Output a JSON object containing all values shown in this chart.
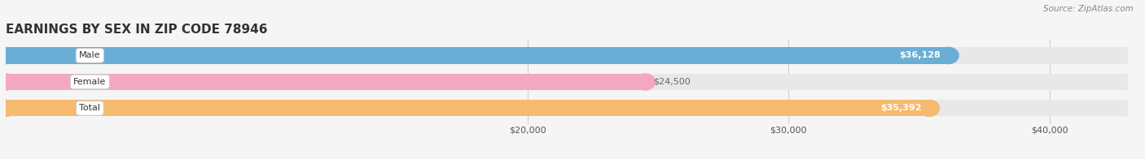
{
  "title": "EARNINGS BY SEX IN ZIP CODE 78946",
  "source": "Source: ZipAtlas.com",
  "categories": [
    "Male",
    "Female",
    "Total"
  ],
  "values": [
    36128,
    24500,
    35392
  ],
  "bar_colors": [
    "#6aaed6",
    "#f4a8c0",
    "#f5ba6d"
  ],
  "label_colors": [
    "white",
    "#666666",
    "white"
  ],
  "value_labels": [
    "$36,128",
    "$24,500",
    "$35,392"
  ],
  "bar_bg_color": "#e8e8e8",
  "xlim_min": 0,
  "xlim_max": 43000,
  "xticks": [
    20000,
    30000,
    40000
  ],
  "xtick_labels": [
    "$20,000",
    "$30,000",
    "$40,000"
  ],
  "title_fontsize": 11,
  "bar_height": 0.62,
  "fig_bg_color": "#f5f5f5",
  "axes_bg_color": "#f5f5f5",
  "grid_color": "#d0d0d0",
  "source_color": "#888888"
}
